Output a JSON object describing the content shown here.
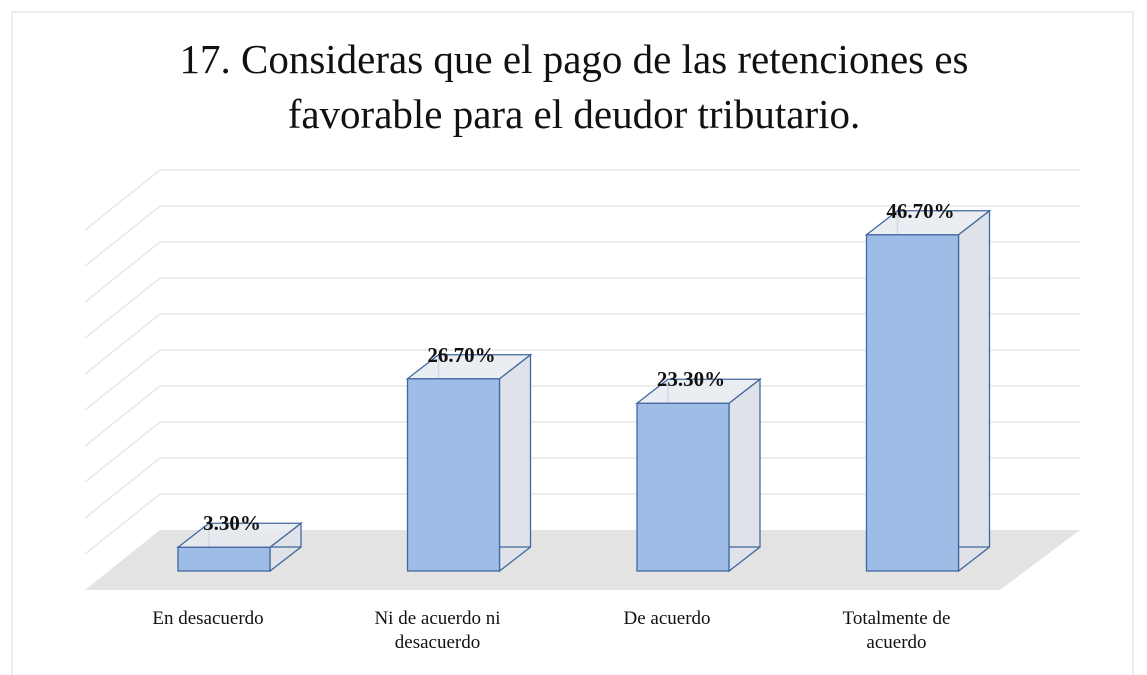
{
  "chart_data": {
    "type": "bar3d",
    "title": "17. Consideras que el pago de las retenciones es favorable para el deudor tributario.",
    "categories": [
      "En desacuerdo",
      "Ni de acuerdo ni desacuerdo",
      "De acuerdo",
      "Totalmente de acuerdo"
    ],
    "values": [
      3.3,
      26.7,
      23.3,
      46.7
    ],
    "value_labels": [
      "3.30%",
      "26.70%",
      "23.30%",
      "46.70%"
    ],
    "color": "#9dbde6",
    "ylim": [
      0,
      50
    ],
    "yticks": [
      0,
      5,
      10,
      15,
      20,
      25,
      30,
      35,
      40,
      45,
      50
    ],
    "grid": true
  }
}
